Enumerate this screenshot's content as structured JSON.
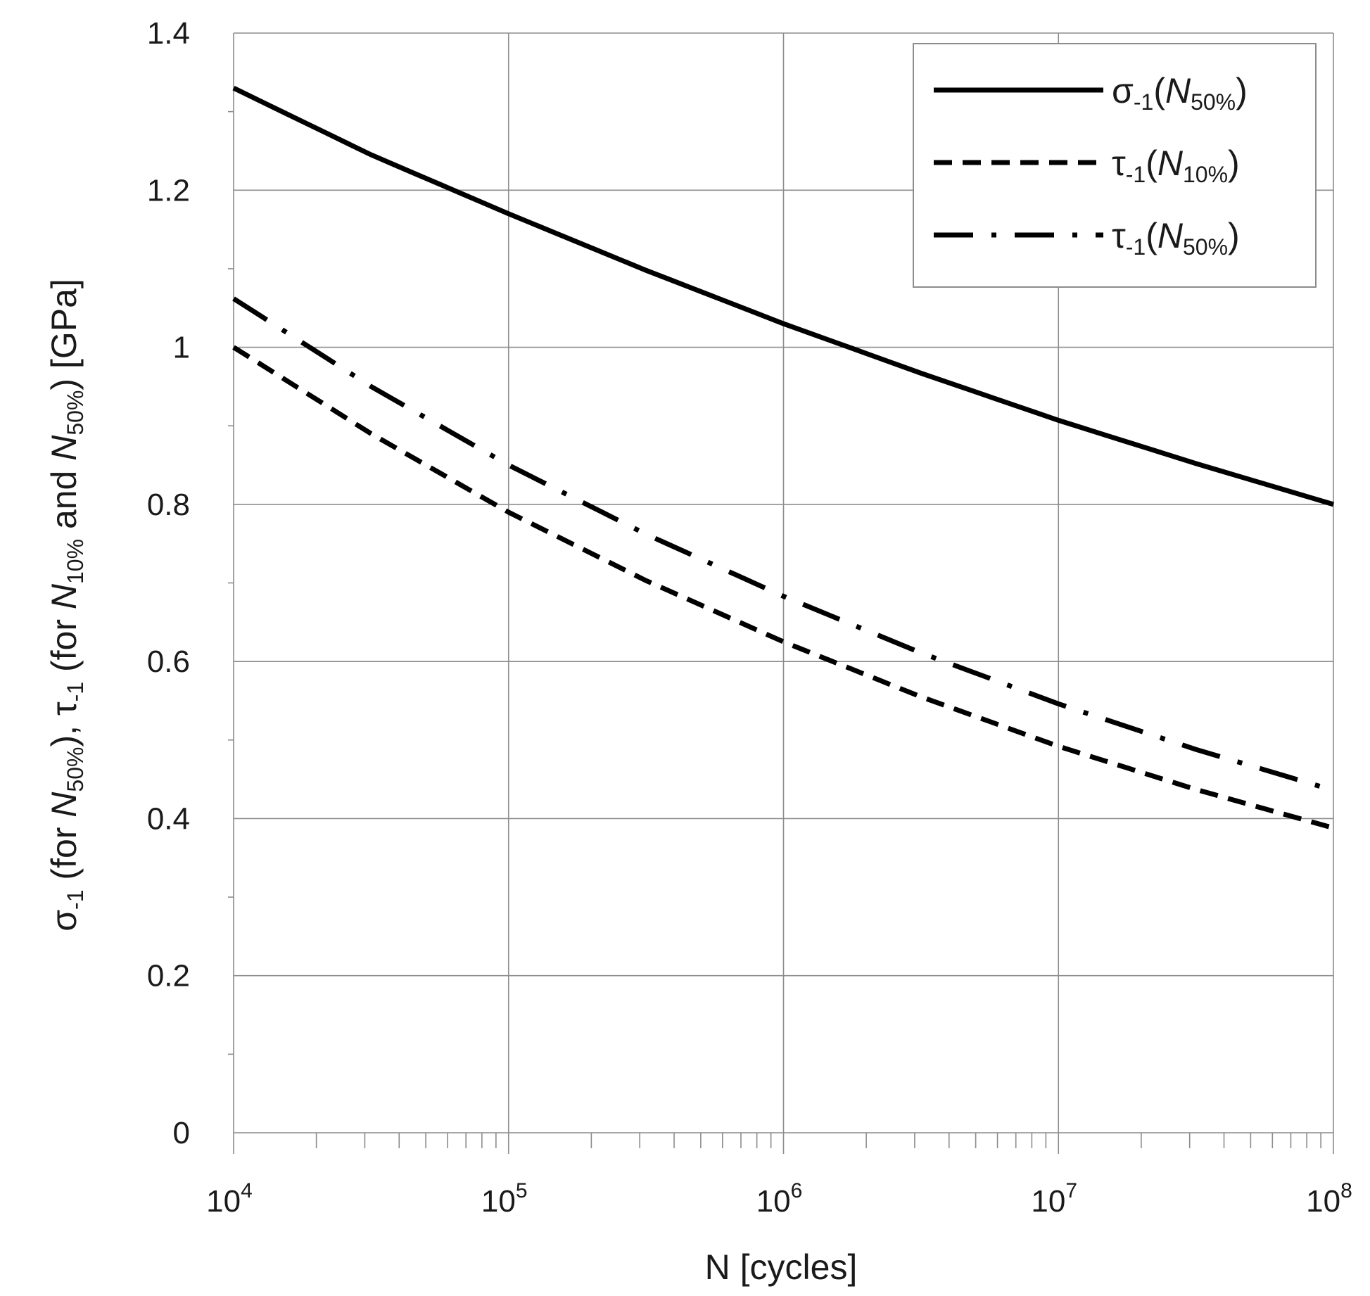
{
  "chart_data": {
    "type": "line",
    "title": "",
    "xlabel": "N [cycles]",
    "ylabel": {
      "parts": [
        "σ",
        "-1",
        " (for ",
        "N",
        "50%",
        "), τ",
        "-1",
        " (for ",
        "N",
        "10%",
        " and ",
        "N",
        "50%",
        ") [GPa]"
      ]
    },
    "xscale": "log",
    "xlim": [
      10000,
      100000000
    ],
    "ylim": [
      0,
      1.4
    ],
    "x_ticks": [
      {
        "base": "10",
        "exp": "4",
        "value": 10000
      },
      {
        "base": "10",
        "exp": "5",
        "value": 100000
      },
      {
        "base": "10",
        "exp": "6",
        "value": 1000000
      },
      {
        "base": "10",
        "exp": "7",
        "value": 10000000
      },
      {
        "base": "10",
        "exp": "8",
        "value": 100000000
      }
    ],
    "y_ticks": [
      {
        "label": "0",
        "value": 0
      },
      {
        "label": "0.2",
        "value": 0.2
      },
      {
        "label": "0.4",
        "value": 0.4
      },
      {
        "label": "0.6",
        "value": 0.6
      },
      {
        "label": "0.8",
        "value": 0.8
      },
      {
        "label": "1",
        "value": 1.0
      },
      {
        "label": "1.2",
        "value": 1.2
      },
      {
        "label": "1.4",
        "value": 1.4
      }
    ],
    "grid": true,
    "legend_position": "top-right",
    "series": [
      {
        "name": "σ-1(N50%)",
        "legend": {
          "sym": "σ",
          "sub1": "-1",
          "open": "(",
          "var": "N",
          "sub2": "50%",
          "close": ")"
        },
        "style": "solid",
        "x": [
          10000,
          31623,
          100000,
          316228,
          1000000,
          3162278,
          10000000,
          31622777,
          100000000
        ],
        "y": [
          1.33,
          1.245,
          1.17,
          1.098,
          1.03,
          0.967,
          0.907,
          0.852,
          0.8
        ]
      },
      {
        "name": "τ-1(N10%)",
        "legend": {
          "sym": "τ",
          "sub1": "-1",
          "open": "(",
          "var": "N",
          "sub2": "10%",
          "close": ")"
        },
        "style": "dashed",
        "x": [
          10000,
          31623,
          100000,
          316228,
          1000000,
          3162278,
          10000000,
          31622777,
          100000000
        ],
        "y": [
          1.0,
          0.89,
          0.79,
          0.703,
          0.625,
          0.555,
          0.492,
          0.437,
          0.388
        ]
      },
      {
        "name": "τ-1(N50%)",
        "legend": {
          "sym": "τ",
          "sub1": "-1",
          "open": "(",
          "var": "N",
          "sub2": "50%",
          "close": ")"
        },
        "style": "dashdot",
        "x": [
          10000,
          31623,
          100000,
          316228,
          1000000,
          3162278,
          10000000,
          31622777,
          100000000
        ],
        "y": [
          1.062,
          0.95,
          0.85,
          0.762,
          0.683,
          0.611,
          0.546,
          0.488,
          0.436
        ]
      }
    ]
  }
}
